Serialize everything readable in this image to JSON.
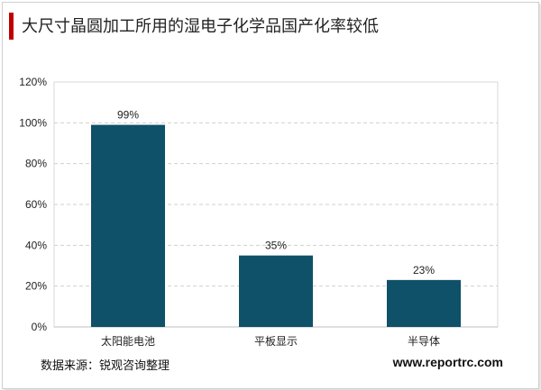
{
  "title": "大尺寸晶圆加工所用的湿电子化学品国产化率较低",
  "source": "数据来源：锐观咨询整理",
  "website": "www.reportrc.com",
  "colors": {
    "accent": "#c00000",
    "bar": "#0f5168"
  },
  "chart_data": {
    "type": "bar",
    "categories": [
      "太阳能电池",
      "平板显示",
      "半导体"
    ],
    "values": [
      99,
      35,
      23
    ],
    "data_labels": [
      "99%",
      "35%",
      "23%"
    ],
    "ylim": [
      0,
      120
    ],
    "yticks": [
      0,
      20,
      40,
      60,
      80,
      100,
      120
    ],
    "ytick_labels": [
      "0%",
      "20%",
      "40%",
      "60%",
      "80%",
      "100%",
      "120%"
    ],
    "grid": true,
    "legend": "none"
  }
}
